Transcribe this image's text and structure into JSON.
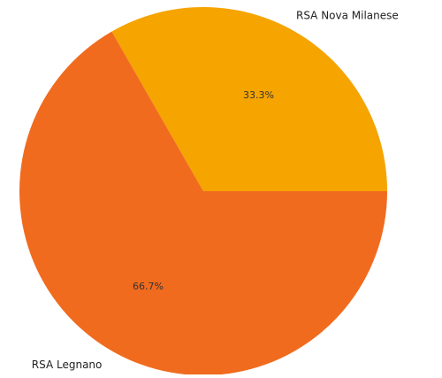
{
  "chart_data": {
    "type": "pie",
    "title": "",
    "categories": [
      "RSA Nova Milanese",
      "RSA Legnano"
    ],
    "values": [
      33.3,
      66.7
    ],
    "percent_labels": [
      "33.3%",
      "66.7%"
    ],
    "colors": [
      "#f5a400",
      "#f06b1e"
    ],
    "legend": "none"
  }
}
